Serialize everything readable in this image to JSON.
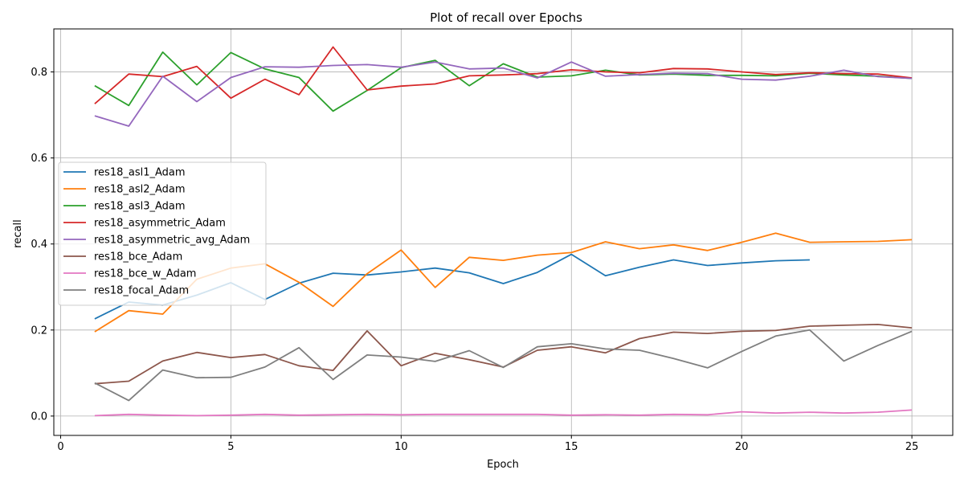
{
  "chart_data": {
    "type": "line",
    "title": "Plot of recall over Epochs",
    "xlabel": "Epoch",
    "ylabel": "recall",
    "xlim": [
      -0.2,
      26.2
    ],
    "ylim": [
      -0.045,
      0.9
    ],
    "xticks": [
      0,
      5,
      10,
      15,
      20,
      25
    ],
    "yticks": [
      0.0,
      0.2,
      0.4,
      0.6,
      0.8
    ],
    "xtick_labels": [
      "0",
      "5",
      "10",
      "15",
      "20",
      "25"
    ],
    "ytick_labels": [
      "0.0",
      "0.2",
      "0.4",
      "0.6",
      "0.8"
    ],
    "grid": true,
    "legend_position": "center-left",
    "series": [
      {
        "name": "res18_asl1_Adam",
        "color": "#1f77b4",
        "x": [
          1,
          2,
          3,
          4,
          5,
          6,
          7,
          8,
          9,
          10,
          11,
          12,
          13,
          14,
          15,
          16,
          17,
          18,
          19,
          20,
          21,
          22
        ],
        "values": [
          0.226,
          0.265,
          0.258,
          0.281,
          0.31,
          0.271,
          0.309,
          0.332,
          0.328,
          0.335,
          0.344,
          0.333,
          0.308,
          0.334,
          0.376,
          0.326,
          0.346,
          0.363,
          0.35,
          0.356,
          0.361,
          0.363
        ]
      },
      {
        "name": "res18_asl2_Adam",
        "color": "#ff7f0e",
        "x": [
          1,
          2,
          3,
          4,
          5,
          6,
          7,
          8,
          9,
          10,
          11,
          12,
          13,
          14,
          15,
          16,
          17,
          18,
          19,
          20,
          21,
          22,
          23,
          24,
          25
        ],
        "values": [
          0.196,
          0.245,
          0.237,
          0.318,
          0.344,
          0.354,
          0.311,
          0.255,
          0.331,
          0.386,
          0.299,
          0.369,
          0.362,
          0.374,
          0.38,
          0.405,
          0.389,
          0.398,
          0.385,
          0.404,
          0.425,
          0.404,
          0.405,
          0.406,
          0.41
        ]
      },
      {
        "name": "res18_asl3_Adam",
        "color": "#2ca02c",
        "x": [
          1,
          2,
          3,
          4,
          5,
          6,
          7,
          8,
          9,
          10,
          11,
          12,
          13,
          14,
          15,
          16,
          17,
          18,
          19,
          20,
          21,
          22,
          23,
          24,
          25
        ],
        "values": [
          0.768,
          0.722,
          0.846,
          0.77,
          0.845,
          0.807,
          0.787,
          0.709,
          0.757,
          0.81,
          0.827,
          0.768,
          0.819,
          0.788,
          0.791,
          0.804,
          0.793,
          0.795,
          0.792,
          0.792,
          0.791,
          0.797,
          0.793,
          0.79,
          0.785
        ]
      },
      {
        "name": "res18_asymmetric_Adam",
        "color": "#d62728",
        "x": [
          1,
          2,
          3,
          4,
          5,
          6,
          7,
          8,
          9,
          10,
          11,
          12,
          13,
          14,
          15,
          16,
          17,
          18,
          19,
          20,
          21,
          22,
          23,
          24,
          25
        ],
        "values": [
          0.726,
          0.795,
          0.789,
          0.813,
          0.739,
          0.783,
          0.747,
          0.858,
          0.758,
          0.767,
          0.772,
          0.791,
          0.793,
          0.796,
          0.805,
          0.8,
          0.798,
          0.808,
          0.807,
          0.8,
          0.794,
          0.798,
          0.796,
          0.795,
          0.786
        ]
      },
      {
        "name": "res18_asymmetric_avg_Adam",
        "color": "#9467bd",
        "x": [
          1,
          2,
          3,
          4,
          5,
          6,
          7,
          8,
          9,
          10,
          11,
          12,
          13,
          14,
          15,
          16,
          17,
          18,
          19,
          20,
          21,
          22,
          23,
          24,
          25
        ],
        "values": [
          0.698,
          0.674,
          0.79,
          0.731,
          0.787,
          0.812,
          0.811,
          0.815,
          0.817,
          0.811,
          0.823,
          0.807,
          0.809,
          0.786,
          0.823,
          0.79,
          0.794,
          0.797,
          0.796,
          0.783,
          0.781,
          0.79,
          0.804,
          0.789,
          0.785
        ]
      },
      {
        "name": "res18_bce_Adam",
        "color": "#8c564b",
        "x": [
          1,
          2,
          3,
          4,
          5,
          6,
          7,
          8,
          9,
          10,
          11,
          12,
          13,
          14,
          15,
          16,
          17,
          18,
          19,
          20,
          21,
          22,
          23,
          24,
          25
        ],
        "values": [
          0.075,
          0.081,
          0.128,
          0.148,
          0.136,
          0.143,
          0.117,
          0.106,
          0.198,
          0.117,
          0.146,
          0.131,
          0.114,
          0.153,
          0.161,
          0.147,
          0.18,
          0.195,
          0.192,
          0.197,
          0.199,
          0.209,
          0.211,
          0.213,
          0.205
        ]
      },
      {
        "name": "res18_bce_w_Adam",
        "color": "#e377c2",
        "x": [
          1,
          2,
          3,
          4,
          5,
          6,
          7,
          8,
          9,
          10,
          11,
          12,
          13,
          14,
          15,
          16,
          17,
          18,
          19,
          20,
          21,
          22,
          23,
          24,
          25
        ],
        "values": [
          0.001,
          0.004,
          0.002,
          0.001,
          0.002,
          0.004,
          0.002,
          0.003,
          0.004,
          0.003,
          0.004,
          0.004,
          0.004,
          0.004,
          0.002,
          0.003,
          0.002,
          0.004,
          0.003,
          0.01,
          0.007,
          0.009,
          0.007,
          0.009,
          0.014
        ]
      },
      {
        "name": "res18_focal_Adam",
        "color": "#7f7f7f",
        "x": [
          1,
          2,
          3,
          4,
          5,
          6,
          7,
          8,
          9,
          10,
          11,
          12,
          13,
          14,
          15,
          16,
          17,
          18,
          19,
          20,
          21,
          22,
          23,
          24,
          25
        ],
        "values": [
          0.077,
          0.036,
          0.107,
          0.089,
          0.09,
          0.114,
          0.159,
          0.085,
          0.142,
          0.137,
          0.127,
          0.152,
          0.113,
          0.161,
          0.168,
          0.156,
          0.153,
          0.134,
          0.112,
          0.15,
          0.186,
          0.2,
          0.128,
          0.164,
          0.197
        ]
      }
    ]
  }
}
